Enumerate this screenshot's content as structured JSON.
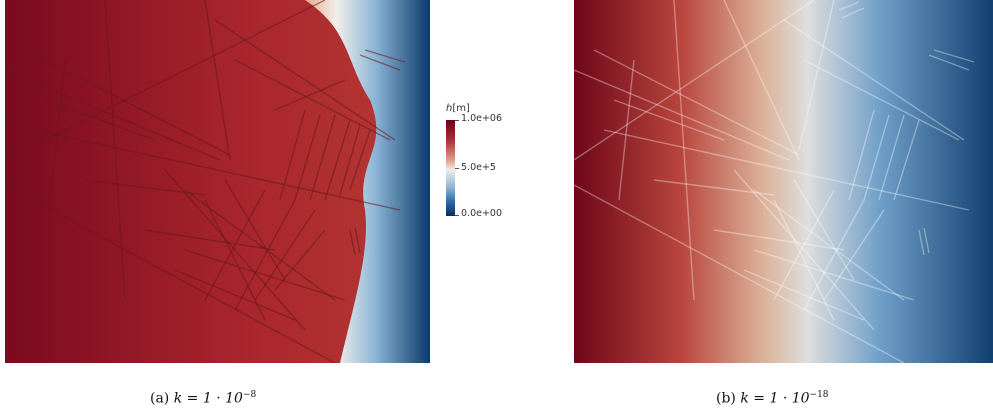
{
  "colorbar": {
    "variable": "h",
    "unit": "[m]",
    "tick_labels": [
      "1.0e+06",
      "5.0e+5",
      "0.0e+00"
    ]
  },
  "panels": [
    {
      "tag": "(a)",
      "k_prefix": "k = 1 · 10",
      "k_exponent": "−8",
      "colors": {
        "high": "#7a0a1e",
        "mid": "#f2f2f2",
        "low": "#0a3a6b"
      }
    },
    {
      "tag": "(b)",
      "k_prefix": "k = 1 · 10",
      "k_exponent": "−18",
      "colors": {
        "high": "#7a0a1e",
        "mid": "#e3e3e3",
        "low": "#0f4f8a"
      }
    }
  ]
}
